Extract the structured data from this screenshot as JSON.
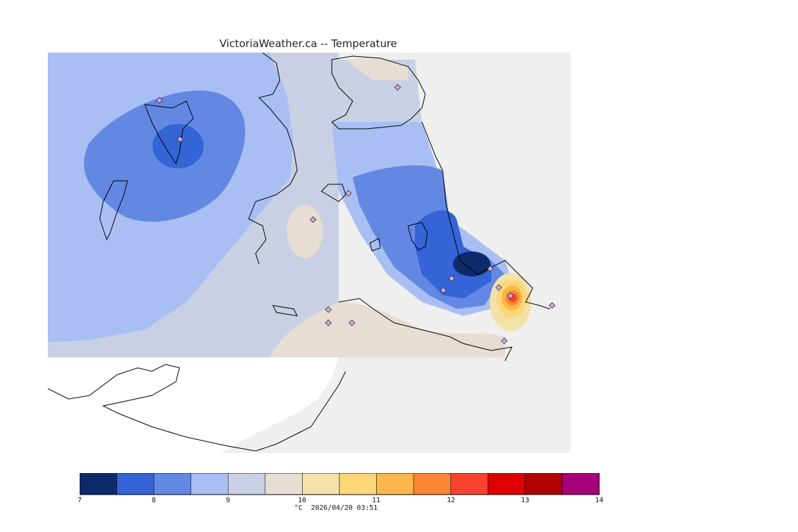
{
  "header": {
    "title": "VictoriaWeather.ca -- Temperature"
  },
  "legend": {
    "unit": "°C",
    "timestamp": "2026/04/20 03:51",
    "tick_labels": [
      "7",
      "8",
      "9",
      "10",
      "11",
      "12",
      "13",
      "14"
    ],
    "bins": [
      {
        "color": "#0d2a6b"
      },
      {
        "color": "#3464d6"
      },
      {
        "color": "#6388e3"
      },
      {
        "color": "#a9bff3"
      },
      {
        "color": "#c9d0e4"
      },
      {
        "color": "#e6ded2"
      },
      {
        "color": "#f3e1aa"
      },
      {
        "color": "#fcd778"
      },
      {
        "color": "#fcb64b"
      },
      {
        "color": "#fc8532"
      },
      {
        "color": "#f84131"
      },
      {
        "color": "#de0000"
      },
      {
        "color": "#b10000"
      },
      {
        "color": "#a6007a"
      }
    ]
  },
  "colors": {
    "land_background": "#efefef",
    "water": "#ffffff",
    "coastline": "#000000",
    "station_marker": "#d9a5e0"
  }
}
